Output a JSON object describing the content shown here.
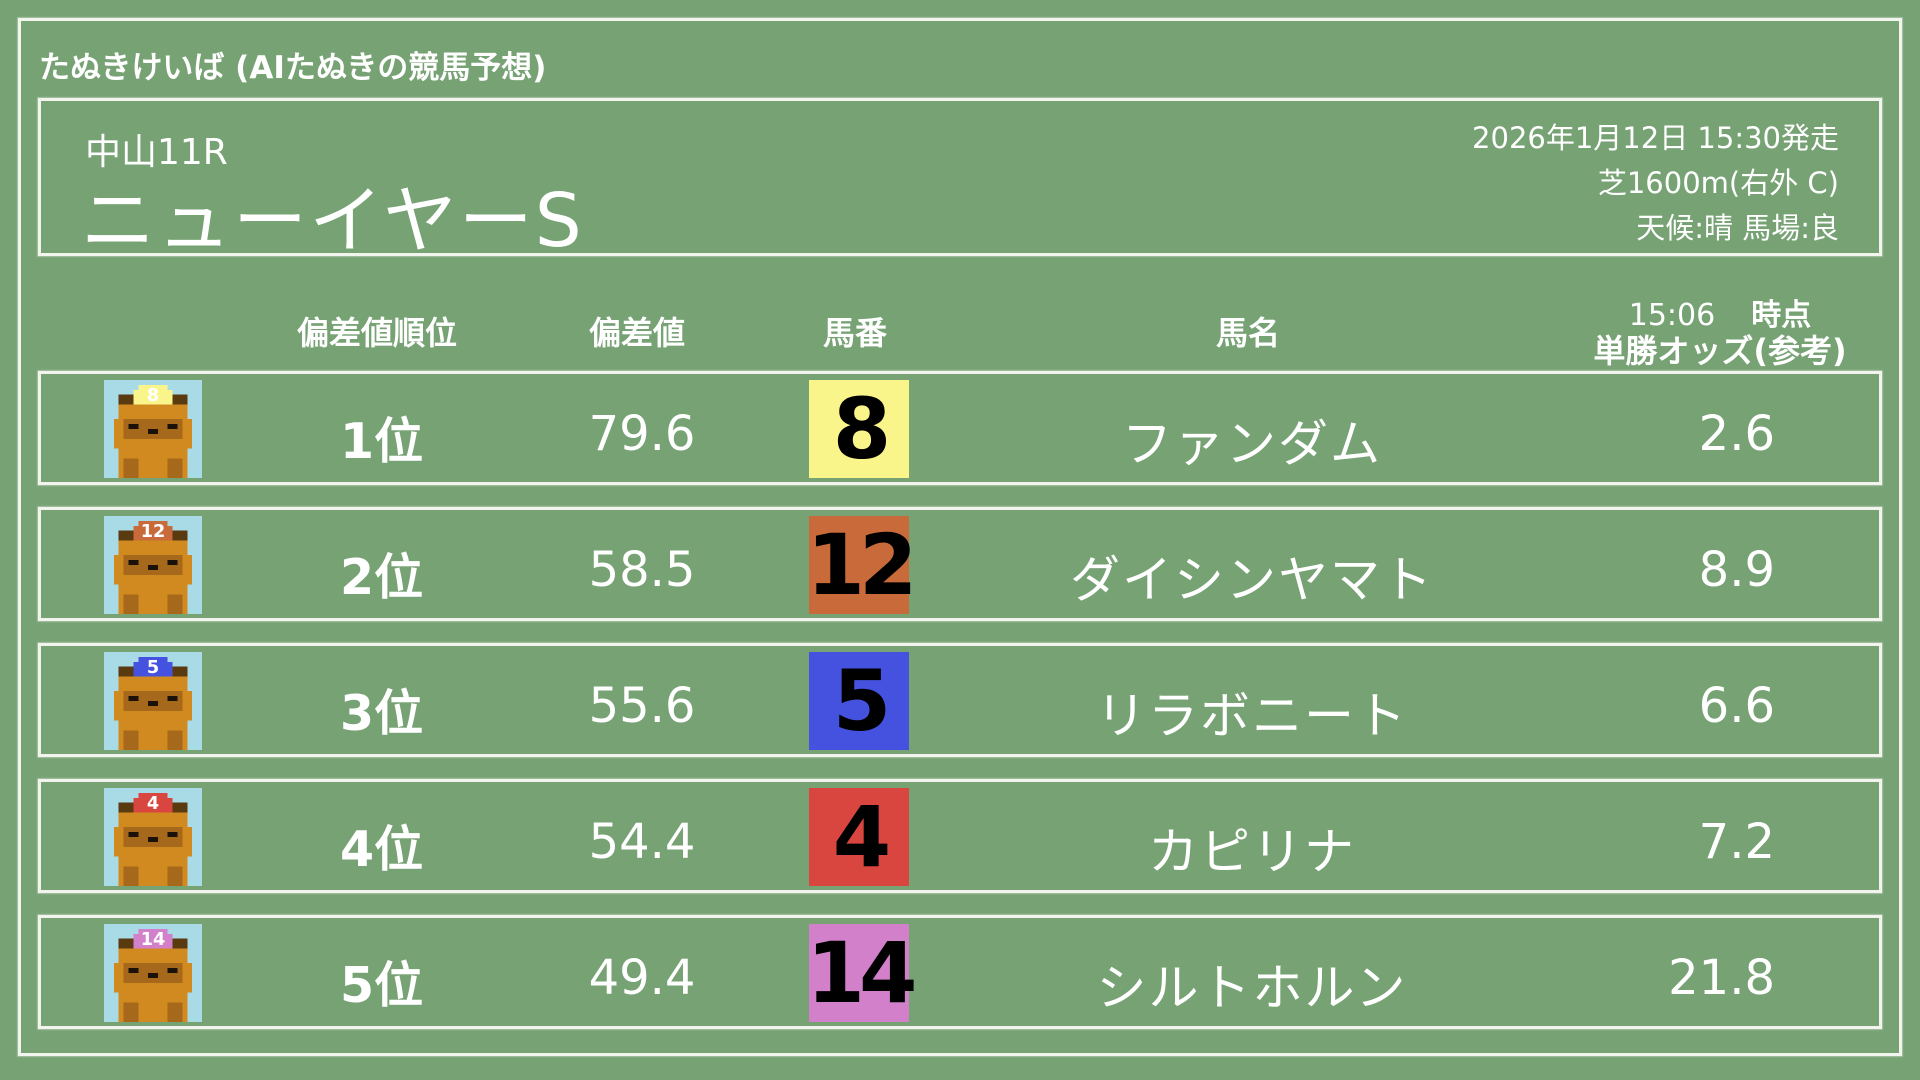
{
  "app_title": "たぬきけいば (AIたぬきの競馬予想)",
  "race": {
    "venue_round": "中山11R",
    "name": "ニューイヤーS",
    "datetime": "2026年1月12日 15:30発走",
    "course": "芝1600m(右外 C)",
    "conditions": "天候:晴 馬場:良"
  },
  "columns": {
    "rank": "偏差値順位",
    "score": "偏差値",
    "number": "馬番",
    "name": "馬名",
    "odds_time": "15:06",
    "odds_time_suffix": "時点",
    "odds": "単勝オッズ(参考)"
  },
  "rows": [
    {
      "rank": "1位",
      "score": "79.6",
      "number": "8",
      "name": "ファンダム",
      "odds": "2.6",
      "color": "#faf58a"
    },
    {
      "rank": "2位",
      "score": "58.5",
      "number": "12",
      "name": "ダイシンヤマト",
      "odds": "8.9",
      "color": "#c86a3a"
    },
    {
      "rank": "3位",
      "score": "55.6",
      "number": "5",
      "name": "リラボニート",
      "odds": "6.6",
      "color": "#4552e0"
    },
    {
      "rank": "4位",
      "score": "54.4",
      "number": "4",
      "name": "カピリナ",
      "odds": "7.2",
      "color": "#d9463f"
    },
    {
      "rank": "5位",
      "score": "49.4",
      "number": "14",
      "name": "シルトホルン",
      "odds": "21.8",
      "color": "#d280c9"
    }
  ]
}
